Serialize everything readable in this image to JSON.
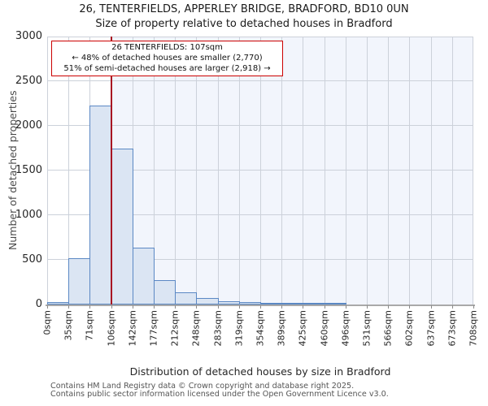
{
  "title": {
    "line1": "26, TENTERFIELDS, APPERLEY BRIDGE, BRADFORD, BD10 0UN",
    "line2": "Size of property relative to detached houses in Bradford"
  },
  "annotation": {
    "line1": "26 TENTERFIELDS: 107sqm",
    "line2": "← 48% of detached houses are smaller (2,770)",
    "line3": "51% of semi-detached houses are larger (2,918) →"
  },
  "chart_data": {
    "type": "bar",
    "histogram": true,
    "title": "26, TENTERFIELDS, APPERLEY BRIDGE, BRADFORD, BD10 0UN — Size of property relative to detached houses in Bradford",
    "xlabel": "Distribution of detached houses by size in Bradford",
    "ylabel": "Number of detached properties",
    "x_tick_labels": [
      "0sqm",
      "35sqm",
      "71sqm",
      "106sqm",
      "142sqm",
      "177sqm",
      "212sqm",
      "248sqm",
      "283sqm",
      "319sqm",
      "354sqm",
      "389sqm",
      "425sqm",
      "460sqm",
      "496sqm",
      "531sqm",
      "566sqm",
      "602sqm",
      "637sqm",
      "673sqm",
      "708sqm"
    ],
    "bin_edges_sqm": [
      0,
      35,
      71,
      106,
      142,
      177,
      212,
      248,
      283,
      319,
      354,
      389,
      425,
      460,
      496,
      531,
      566,
      602,
      637,
      673,
      708
    ],
    "values": [
      25,
      520,
      2230,
      1750,
      640,
      270,
      140,
      70,
      40,
      25,
      20,
      10,
      10,
      8,
      0,
      0,
      0,
      0,
      0,
      0
    ],
    "y_ticks": [
      0,
      500,
      1000,
      1500,
      2000,
      2500,
      3000
    ],
    "ylim": [
      0,
      3000
    ],
    "grid": true,
    "legend": "none",
    "marker_value_sqm": 107,
    "colors": {
      "bar_fill": "#dbe5f3",
      "bar_edge": "#5b88c4",
      "marker_line": "#a81422",
      "annotation_border": "#cc0000",
      "shade_right_of_marker": "#f2f5fc",
      "gridline": "#ccd1da"
    }
  },
  "footer": {
    "line1": "Contains HM Land Registry data © Crown copyright and database right 2025.",
    "line2": "Contains public sector information licensed under the Open Government Licence v3.0."
  }
}
